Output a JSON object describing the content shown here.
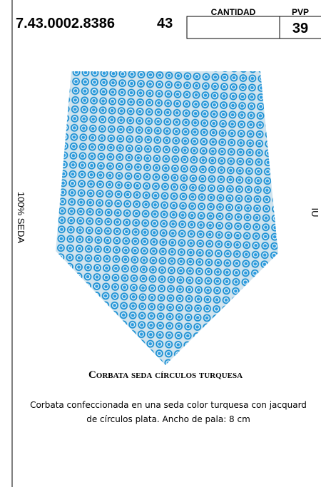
{
  "header": {
    "code": "7.43.0002.8386",
    "size": "43",
    "quantity_label": "CANTIDAD",
    "price_label": "PVP",
    "price": "39"
  },
  "side_label": "100% SEDA",
  "edge_fragment": "IU",
  "product": {
    "title": "Corbata seda círculos turquesa",
    "description": [
      "Corbata confeccionada en una seda color turquesa con jacquard",
      "de círculos plata. Ancho de pala: 8 cm"
    ]
  }
}
